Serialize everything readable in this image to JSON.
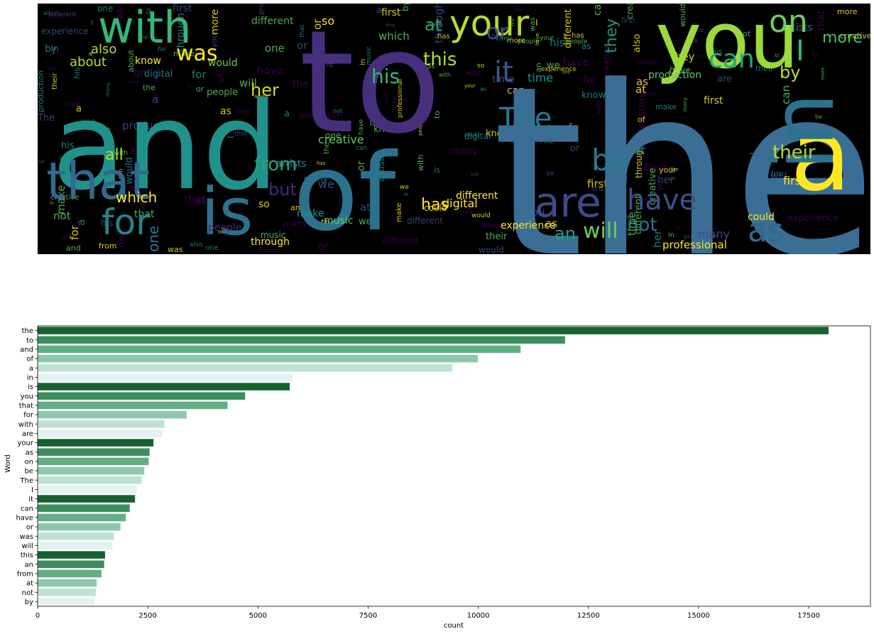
{
  "wordcloud": {
    "background": "#000000",
    "palette": [
      "#440154",
      "#3b528b",
      "#21918c",
      "#5ec962",
      "#fde725"
    ],
    "words": [
      {
        "text": "the",
        "color": "#3b6e94"
      },
      {
        "text": "to",
        "color": "#472f7d"
      },
      {
        "text": "and",
        "color": "#21918c"
      },
      {
        "text": "of",
        "color": "#2c728e"
      },
      {
        "text": "you",
        "color": "#9bd93c"
      },
      {
        "text": "a",
        "color": "#fde725"
      },
      {
        "text": "in",
        "color": "#2c728e"
      },
      {
        "text": "is",
        "color": "#2c728e"
      },
      {
        "text": "that",
        "color": "#31688e"
      },
      {
        "text": "with",
        "color": "#35b779"
      },
      {
        "text": "for",
        "color": "#26828e"
      },
      {
        "text": "are",
        "color": "#3e4a89"
      },
      {
        "text": "your",
        "color": "#b5de2b"
      },
      {
        "text": "on",
        "color": "#6ece58"
      },
      {
        "text": "as",
        "color": "#31688e"
      },
      {
        "text": "have",
        "color": "#3b528b"
      },
      {
        "text": "be",
        "color": "#2a788e"
      },
      {
        "text": "The",
        "color": "#2a788e"
      },
      {
        "text": "I",
        "color": "#35b779"
      },
      {
        "text": "it",
        "color": "#38598c"
      },
      {
        "text": "can",
        "color": "#22a884"
      },
      {
        "text": "or",
        "color": "#3e4a89"
      },
      {
        "text": "was",
        "color": "#fde725"
      },
      {
        "text": "will",
        "color": "#6ece58"
      },
      {
        "text": "this",
        "color": "#b5de2b"
      },
      {
        "text": "an",
        "color": "#1f9e89"
      },
      {
        "text": "from",
        "color": "#22a884"
      },
      {
        "text": "at",
        "color": "#1fa187"
      },
      {
        "text": "not",
        "color": "#2c728e"
      },
      {
        "text": "by",
        "color": "#c2df23"
      },
      {
        "text": "his",
        "color": "#35b779"
      },
      {
        "text": "more",
        "color": "#4ac16d"
      },
      {
        "text": "which",
        "color": "#fde725"
      },
      {
        "text": "their",
        "color": "#b5de2b"
      },
      {
        "text": "but",
        "color": "#482878"
      },
      {
        "text": "her",
        "color": "#cae11f"
      },
      {
        "text": "has",
        "color": "#fde725"
      },
      {
        "text": "about",
        "color": "#b5de2b"
      },
      {
        "text": "also",
        "color": "#b5de2b"
      },
      {
        "text": "all",
        "color": "#b5de2b"
      },
      {
        "text": "one",
        "color": "#2a788e"
      },
      {
        "text": "so",
        "color": "#fde725"
      },
      {
        "text": "they",
        "color": "#21918c"
      },
      {
        "text": "we",
        "color": "#3e4a89"
      },
      {
        "text": "music",
        "color": "#5ec962"
      },
      {
        "text": "digital",
        "color": "#fde725"
      },
      {
        "text": "people",
        "color": "#482878"
      },
      {
        "text": "artists",
        "color": "#26828e"
      },
      {
        "text": "creative",
        "color": "#5ec962"
      },
      {
        "text": "time",
        "color": "#21918c"
      },
      {
        "text": "through",
        "color": "#fde725"
      },
      {
        "text": "professional",
        "color": "#fde725"
      },
      {
        "text": "could",
        "color": "#fde725"
      },
      {
        "text": "first",
        "color": "#fde725"
      },
      {
        "text": "know",
        "color": "#fde725"
      },
      {
        "text": "would",
        "color": "#6ece58"
      },
      {
        "text": "make",
        "color": "#21918c"
      },
      {
        "text": "many",
        "color": "#3e4a89"
      },
      {
        "text": "production",
        "color": "#5ec962"
      },
      {
        "text": "experience",
        "color": "#fde725"
      },
      {
        "text": "different",
        "color": "#fde725"
      }
    ]
  },
  "chart_data": {
    "type": "bar",
    "orientation": "horizontal",
    "categories": [
      "the",
      "to",
      "and",
      "of",
      "a",
      "in",
      "is",
      "you",
      "that",
      "for",
      "with",
      "are",
      "your",
      "as",
      "on",
      "be",
      "The",
      "I",
      "it",
      "can",
      "have",
      "or",
      "was",
      "will",
      "this",
      "an",
      "from",
      "at",
      "not",
      "by"
    ],
    "values": [
      17950,
      11970,
      10960,
      9990,
      9410,
      5790,
      5720,
      4710,
      4310,
      3380,
      2880,
      2830,
      2630,
      2540,
      2520,
      2420,
      2360,
      2250,
      2210,
      2090,
      2000,
      1880,
      1730,
      1700,
      1530,
      1510,
      1450,
      1340,
      1320,
      1290
    ],
    "colors": [
      "#17612f",
      "#3b8f5c",
      "#63af85",
      "#8ec7ad",
      "#bde2d4",
      "#e4f3ef"
    ],
    "title": "",
    "xlabel": "count",
    "ylabel": "Word",
    "xlim": [
      0,
      18900
    ],
    "xticks": [
      0,
      2500,
      5000,
      7500,
      10000,
      12500,
      15000,
      17500
    ],
    "xtick_labels": [
      "0",
      "2500",
      "5000",
      "7500",
      "10000",
      "12500",
      "15000",
      "17500"
    ],
    "grid": false,
    "legend": "none"
  }
}
